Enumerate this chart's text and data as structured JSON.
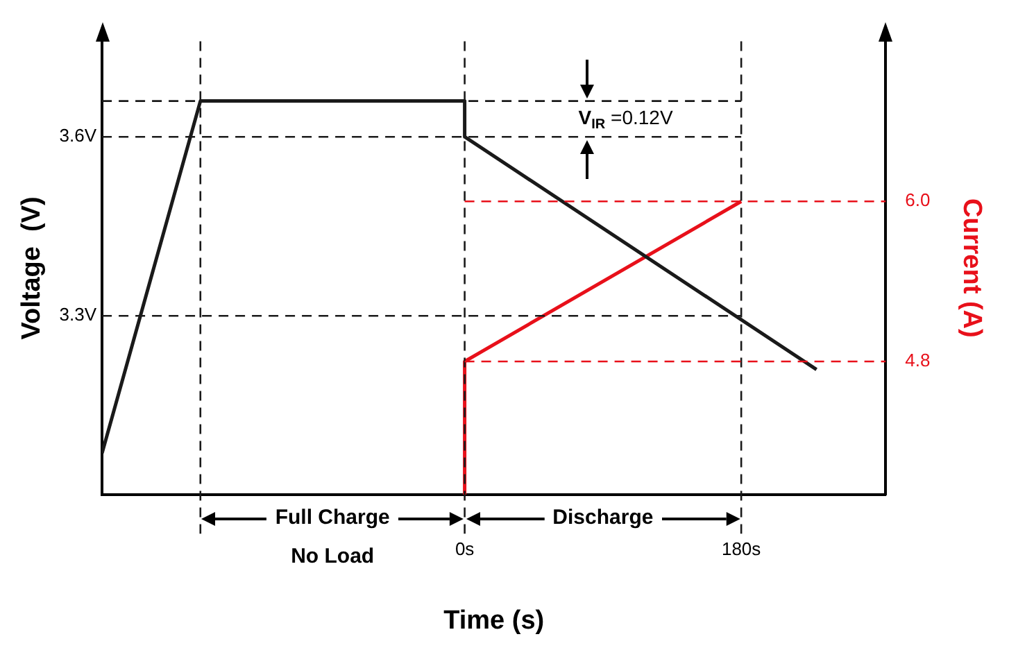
{
  "chart_data": {
    "type": "line",
    "xlabel": "Time (s)",
    "ylabel": "Voltage  (V)",
    "y2label": "Current (A)",
    "xlim": [
      -236,
      274
    ],
    "xticks": [
      {
        "value": 0,
        "label": "0s"
      },
      {
        "value": 180,
        "label": "180s"
      }
    ],
    "ylim": [
      3.0,
      3.76
    ],
    "yticks": [
      {
        "value": 3.6,
        "label": "3.6V"
      },
      {
        "value": 3.3,
        "label": "3.3V"
      }
    ],
    "y2lim": [
      3.8,
      7.2
    ],
    "y2ticks": [
      {
        "value": 6.0,
        "label": "6.0"
      },
      {
        "value": 4.8,
        "label": "4.8"
      }
    ],
    "series": [
      {
        "color": "#1a1a1a",
        "x": [
          -236,
          -172,
          0,
          0,
          229
        ],
        "values": [
          3.07,
          3.66,
          3.66,
          3.6,
          3.21
        ]
      },
      {
        "color": "#e8101a",
        "axis": "y2",
        "x": [
          0,
          0,
          180
        ],
        "values": [
          3.8,
          4.8,
          6.0
        ]
      }
    ],
    "ref_lines": [
      {
        "axis": "y",
        "value": 3.66,
        "color": "#1a1a1a",
        "line_style": "dashed"
      },
      {
        "axis": "y",
        "value": 3.6,
        "color": "#1a1a1a",
        "line_style": "dashed"
      },
      {
        "axis": "y",
        "value": 3.3,
        "color": "#1a1a1a",
        "line_style": "dashed"
      },
      {
        "axis": "x",
        "value": -172,
        "color": "#1a1a1a",
        "line_style": "dashed"
      },
      {
        "axis": "x",
        "value": 0,
        "color": "#1a1a1a",
        "line_style": "dashed"
      },
      {
        "axis": "x",
        "value": 180,
        "color": "#1a1a1a",
        "line_style": "dashed"
      },
      {
        "axis": "y2",
        "value": 6.0,
        "color": "#e8101a",
        "line_style": "dashed"
      },
      {
        "axis": "y2",
        "value": 4.8,
        "color": "#e8101a",
        "line_style": "dashed"
      }
    ],
    "annotations": [
      "Full Charge",
      "No Load",
      "Discharge",
      "V$_{IR}$ =0.12V"
    ],
    "grid": false,
    "legend": false,
    "marker": "none",
    "line_style": "solid"
  }
}
